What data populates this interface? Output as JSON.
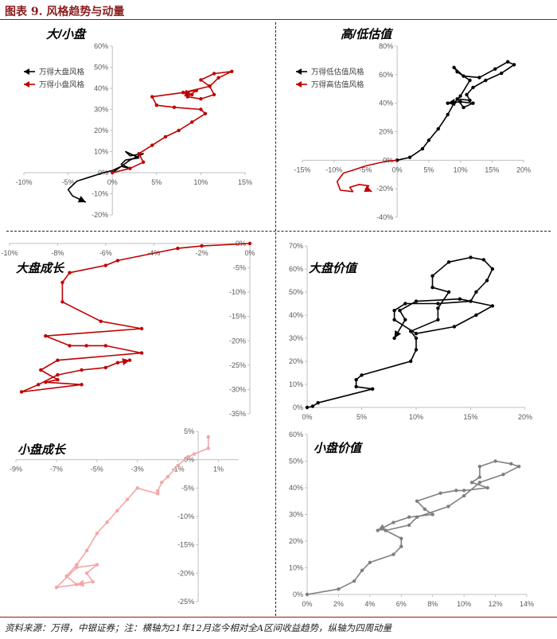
{
  "figure_title": "图表 9. 风格趋势与动量",
  "source_note": "资料来源：万得，中银证券；注：横轴为21年12月迄今相对全A区间收益趋势，纵轴为四周动量",
  "colors": {
    "title": "#8b1c1c",
    "black": "#000000",
    "red": "#c00000",
    "pink": "#f4a6a6",
    "gray": "#7f7f7f",
    "axis": "#bfbfbf"
  },
  "chart_data": [
    {
      "id": "size",
      "type": "line",
      "title": "大/小盘",
      "xlim": [
        -0.1,
        0.15
      ],
      "ylim": [
        -0.2,
        0.6
      ],
      "xticks": [
        -0.1,
        -0.05,
        0,
        0.05,
        0.1,
        0.15
      ],
      "xtick_labels": [
        "-10%",
        "-5%",
        "0%",
        "5%",
        "10%",
        "15%"
      ],
      "yticks": [
        -0.2,
        -0.1,
        0,
        0.1,
        0.2,
        0.3,
        0.4,
        0.5,
        0.6
      ],
      "ytick_labels": [
        "-20%",
        "-10%",
        "0%",
        "10%",
        "20%",
        "30%",
        "40%",
        "50%",
        "60%"
      ],
      "legend_position": "top-left",
      "series": [
        {
          "name": "万得大盘风格",
          "color": "#000000",
          "markers": false,
          "x": [
            0,
            0.01,
            0.02,
            0.035,
            0.02,
            0.015,
            0.03,
            0.015,
            0.01,
            0.02,
            0.01,
            0,
            -0.01,
            -0.025,
            -0.04,
            -0.05,
            -0.045,
            -0.03
          ],
          "y": [
            0,
            0.03,
            0.06,
            0.09,
            0.08,
            0.1,
            0.07,
            0.06,
            0.04,
            0.02,
            0.03,
            0.01,
            0,
            -0.02,
            -0.04,
            -0.08,
            -0.11,
            -0.14
          ]
        },
        {
          "name": "万得小盘风格",
          "color": "#c00000",
          "markers": true,
          "x": [
            0,
            0.02,
            0.035,
            0.03,
            0.045,
            0.06,
            0.075,
            0.09,
            0.105,
            0.1,
            0.07,
            0.05,
            0.045,
            0.08,
            0.11,
            0.1,
            0.115,
            0.135,
            0.12,
            0.11,
            0.115,
            0.1,
            0.085,
            0.095,
            0.08,
            0.09
          ],
          "y": [
            0,
            0.02,
            0.05,
            0.09,
            0.13,
            0.17,
            0.2,
            0.24,
            0.28,
            0.3,
            0.31,
            0.32,
            0.36,
            0.38,
            0.41,
            0.44,
            0.47,
            0.48,
            0.45,
            0.41,
            0.37,
            0.35,
            0.36,
            0.39,
            0.38,
            0.37
          ]
        }
      ]
    },
    {
      "id": "value-growth",
      "type": "line",
      "title": "高/低估值",
      "xlim": [
        -0.15,
        0.2
      ],
      "ylim": [
        -0.4,
        0.8
      ],
      "xticks": [
        -0.15,
        -0.1,
        -0.05,
        0,
        0.05,
        0.1,
        0.15,
        0.2
      ],
      "xtick_labels": [
        "-15%",
        "-10%",
        "-5%",
        "0%",
        "5%",
        "10%",
        "15%",
        "20%"
      ],
      "yticks": [
        -0.4,
        -0.2,
        0,
        0.2,
        0.4,
        0.6,
        0.8
      ],
      "ytick_labels": [
        "-40%",
        "-20%",
        "0%",
        "20%",
        "40%",
        "60%",
        "80%"
      ],
      "legend_position": "top-left",
      "series": [
        {
          "name": "万得低估值风格",
          "color": "#000000",
          "markers": true,
          "x": [
            0,
            0.02,
            0.04,
            0.05,
            0.065,
            0.08,
            0.09,
            0.1,
            0.115,
            0.095,
            0.09,
            0.105,
            0.13,
            0.155,
            0.175,
            0.185,
            0.165,
            0.14,
            0.12,
            0.11,
            0.115,
            0.095,
            0.105,
            0.12,
            0.1,
            0.08
          ],
          "y": [
            0,
            0.02,
            0.08,
            0.14,
            0.22,
            0.32,
            0.4,
            0.45,
            0.56,
            0.62,
            0.65,
            0.59,
            0.58,
            0.64,
            0.69,
            0.67,
            0.61,
            0.56,
            0.51,
            0.46,
            0.42,
            0.43,
            0.37,
            0.4,
            0.41,
            0.4
          ]
        },
        {
          "name": "万得高估值风格",
          "color": "#c00000",
          "markers": false,
          "x": [
            0,
            -0.02,
            -0.05,
            -0.07,
            -0.085,
            -0.095,
            -0.09,
            -0.07,
            -0.075,
            -0.06,
            -0.045,
            -0.05,
            -0.04
          ],
          "y": [
            0,
            -0.01,
            -0.04,
            -0.07,
            -0.09,
            -0.15,
            -0.21,
            -0.22,
            -0.19,
            -0.17,
            -0.18,
            -0.2,
            -0.22
          ]
        }
      ]
    },
    {
      "id": "large-growth",
      "type": "line",
      "title": "大盘成长",
      "xlim": [
        -0.1,
        0
      ],
      "ylim": [
        -0.35,
        0
      ],
      "xticks": [
        -0.1,
        -0.08,
        -0.06,
        -0.04,
        -0.02,
        0
      ],
      "xtick_labels": [
        "-10%",
        "-8%",
        "-6%",
        "-4%",
        "-2%",
        "0%"
      ],
      "yticks": [
        -0.35,
        -0.3,
        -0.25,
        -0.2,
        -0.15,
        -0.1,
        -0.05,
        0
      ],
      "ytick_labels": [
        "-35%",
        "-30%",
        "-25%",
        "-20%",
        "-15%",
        "-10%",
        "-5%",
        "0%"
      ],
      "series": [
        {
          "name": "",
          "color": "#c00000",
          "markers": true,
          "x": [
            0,
            -0.02,
            -0.03,
            -0.055,
            -0.06,
            -0.075,
            -0.078,
            -0.078,
            -0.062,
            -0.045,
            -0.085,
            -0.075,
            -0.068,
            -0.06,
            -0.045,
            -0.08,
            -0.087,
            -0.08,
            -0.085,
            -0.07,
            -0.095,
            -0.088,
            -0.08,
            -0.07,
            -0.06,
            -0.055,
            -0.05
          ],
          "y": [
            0,
            -0.005,
            -0.01,
            -0.035,
            -0.045,
            -0.06,
            -0.08,
            -0.12,
            -0.16,
            -0.175,
            -0.19,
            -0.21,
            -0.21,
            -0.21,
            -0.225,
            -0.24,
            -0.26,
            -0.28,
            -0.285,
            -0.29,
            -0.305,
            -0.29,
            -0.27,
            -0.26,
            -0.255,
            -0.245,
            -0.24
          ]
        }
      ]
    },
    {
      "id": "large-value",
      "type": "line",
      "title": "大盘价值",
      "xlim": [
        0,
        0.2
      ],
      "ylim": [
        0,
        0.7
      ],
      "xticks": [
        0,
        0.05,
        0.1,
        0.15,
        0.2
      ],
      "xtick_labels": [
        "0%",
        "5%",
        "10%",
        "15%",
        "20%"
      ],
      "yticks": [
        0,
        0.1,
        0.2,
        0.3,
        0.4,
        0.5,
        0.6,
        0.7
      ],
      "ytick_labels": [
        "0%",
        "10%",
        "20%",
        "30%",
        "40%",
        "50%",
        "60%",
        "70%"
      ],
      "series": [
        {
          "name": "",
          "color": "#000000",
          "markers": true,
          "x": [
            0,
            0.005,
            0.01,
            0.06,
            0.045,
            0.045,
            0.05,
            0.095,
            0.1,
            0.1,
            0.095,
            0.12,
            0.12,
            0.13,
            0.115,
            0.115,
            0.13,
            0.15,
            0.162,
            0.17,
            0.165,
            0.155,
            0.15,
            0.12,
            0.09,
            0.08,
            0.08,
            0.1,
            0.135,
            0.155,
            0.17,
            0.14,
            0.1,
            0.085,
            0.09,
            0.08
          ],
          "y": [
            0,
            0.005,
            0.02,
            0.08,
            0.09,
            0.12,
            0.14,
            0.2,
            0.25,
            0.3,
            0.33,
            0.38,
            0.43,
            0.5,
            0.52,
            0.57,
            0.63,
            0.65,
            0.64,
            0.6,
            0.55,
            0.5,
            0.46,
            0.45,
            0.45,
            0.42,
            0.38,
            0.32,
            0.35,
            0.4,
            0.44,
            0.47,
            0.46,
            0.42,
            0.38,
            0.3
          ]
        }
      ]
    },
    {
      "id": "small-growth",
      "type": "line",
      "title": "小盘成长",
      "xlim": [
        -0.09,
        0.02
      ],
      "ylim": [
        -0.25,
        0.05
      ],
      "xticks": [
        -0.09,
        -0.07,
        -0.05,
        -0.03,
        -0.01,
        0.01
      ],
      "xtick_labels": [
        "-9%",
        "-7%",
        "-5%",
        "-3%",
        "-1%",
        "1%"
      ],
      "yticks": [
        -0.25,
        -0.2,
        -0.15,
        -0.1,
        -0.05,
        0,
        0.05
      ],
      "ytick_labels": [
        "-25%",
        "-20%",
        "-15%",
        "-10%",
        "-5%",
        "0%",
        "5%"
      ],
      "series": [
        {
          "name": "",
          "color": "#f4a6a6",
          "markers": true,
          "x": [
            0.005,
            0.005,
            -0.002,
            -0.005,
            -0.01,
            -0.015,
            -0.018,
            -0.02,
            -0.02,
            -0.03,
            -0.035,
            -0.04,
            -0.045,
            -0.05,
            -0.055,
            -0.06,
            -0.065,
            -0.06,
            -0.07,
            -0.06,
            -0.05,
            -0.055,
            -0.052,
            -0.06
          ],
          "y": [
            0.04,
            0.02,
            0.01,
            0.005,
            -0.01,
            -0.03,
            -0.04,
            -0.055,
            -0.06,
            -0.05,
            -0.07,
            -0.09,
            -0.11,
            -0.13,
            -0.16,
            -0.185,
            -0.205,
            -0.22,
            -0.225,
            -0.19,
            -0.185,
            -0.2,
            -0.215,
            -0.22
          ]
        }
      ]
    },
    {
      "id": "small-value",
      "type": "line",
      "title": "小盘价值",
      "xlim": [
        0,
        0.14
      ],
      "ylim": [
        0,
        0.6
      ],
      "xticks": [
        0,
        0.02,
        0.04,
        0.06,
        0.08,
        0.1,
        0.12,
        0.14
      ],
      "xtick_labels": [
        "0%",
        "2%",
        "4%",
        "6%",
        "8%",
        "10%",
        "12%",
        "14%"
      ],
      "yticks": [
        0,
        0.1,
        0.2,
        0.3,
        0.4,
        0.5,
        0.6
      ],
      "ytick_labels": [
        "0%",
        "10%",
        "20%",
        "30%",
        "40%",
        "50%",
        "60%"
      ],
      "series": [
        {
          "name": "",
          "color": "#7f7f7f",
          "markers": true,
          "x": [
            0,
            0.02,
            0.03,
            0.035,
            0.04,
            0.055,
            0.06,
            0.06,
            0.05,
            0.065,
            0.07,
            0.09,
            0.1,
            0.11,
            0.125,
            0.135,
            0.13,
            0.12,
            0.11,
            0.11,
            0.105,
            0.115,
            0.1,
            0.095,
            0.085,
            0.07,
            0.075,
            0.08,
            0.065,
            0.055,
            0.045
          ],
          "y": [
            0,
            0.02,
            0.05,
            0.09,
            0.12,
            0.15,
            0.18,
            0.21,
            0.24,
            0.26,
            0.29,
            0.33,
            0.37,
            0.42,
            0.45,
            0.48,
            0.49,
            0.5,
            0.48,
            0.44,
            0.42,
            0.4,
            0.39,
            0.39,
            0.38,
            0.35,
            0.32,
            0.3,
            0.29,
            0.27,
            0.24
          ]
        }
      ]
    }
  ]
}
